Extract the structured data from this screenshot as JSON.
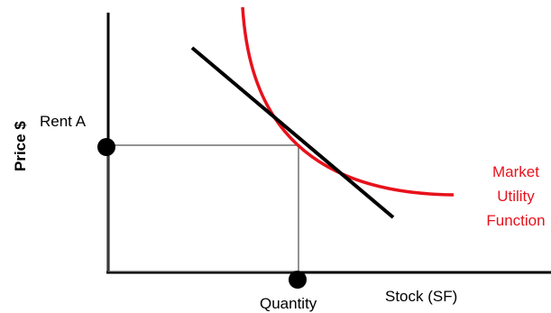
{
  "labels": {
    "y_axis": "Price $",
    "rent": "Rent A",
    "quantity": "Quantity",
    "x_axis": "Stock (SF)",
    "curve_line1": "Market",
    "curve_line2": "Utility",
    "curve_line3": "Function"
  },
  "colors": {
    "axis": "#000000",
    "utility_curve": "#e8111b",
    "curve_label": "#e8111b",
    "tangent_line": "#000000",
    "rectangle": "#595959"
  }
}
